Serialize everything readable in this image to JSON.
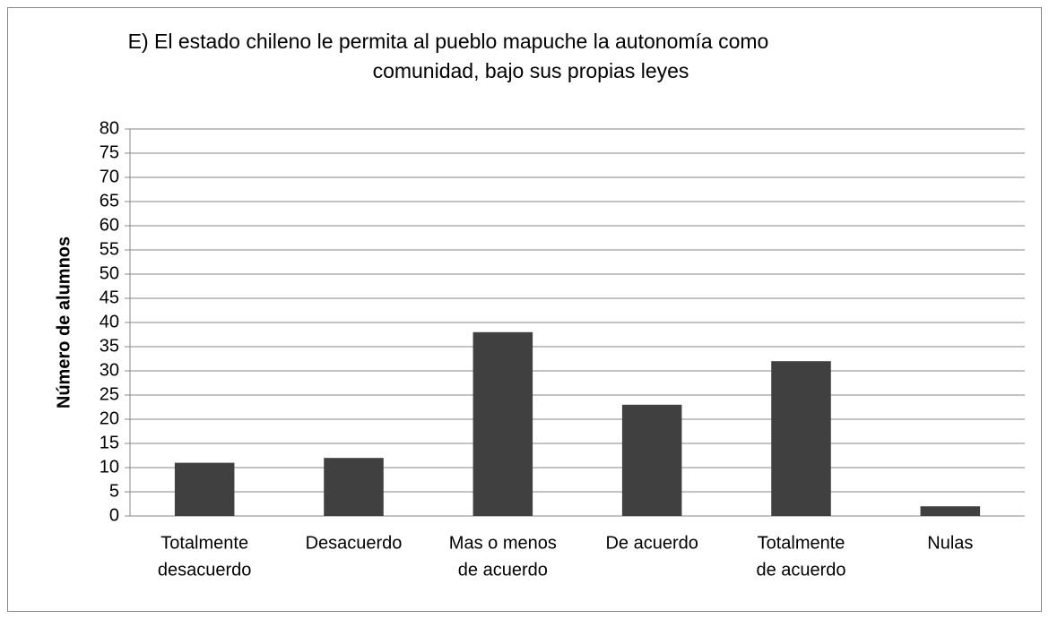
{
  "chart_data": {
    "type": "bar",
    "title": [
      "E) El estado chileno le permita al pueblo mapuche la autonomía como",
      "comunidad, bajo sus propias leyes"
    ],
    "y_label": "Número de alumnos",
    "categories": [
      [
        "Totalmente",
        "desacuerdo"
      ],
      [
        "Desacuerdo"
      ],
      [
        "Mas o menos",
        "de acuerdo"
      ],
      [
        "De acuerdo"
      ],
      [
        "Totalmente",
        "de acuerdo"
      ],
      [
        "Nulas"
      ]
    ],
    "values": [
      11,
      12,
      38,
      23,
      32,
      2
    ],
    "color": "#404040",
    "ylim": [
      0,
      80
    ],
    "yticks": [
      0,
      5,
      10,
      15,
      20,
      25,
      30,
      35,
      40,
      45,
      50,
      55,
      60,
      65,
      70,
      75,
      80
    ],
    "grid": true
  }
}
